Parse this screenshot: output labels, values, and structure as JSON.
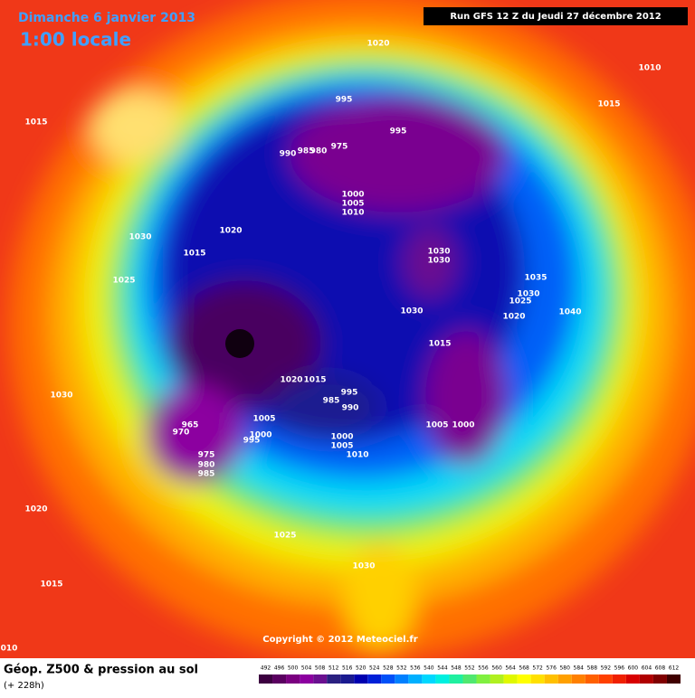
{
  "header": {
    "date": "Dimanche 6 janvier 2013",
    "time": "1:00 locale",
    "run": "Run GFS 12 Z du Jeudi 27 décembre 2012"
  },
  "footer": {
    "title": "Géop. Z500 & pression au sol",
    "lead": "(+ 228h)",
    "copyright": "Copyright © 2012 Meteociel.fr"
  },
  "legend": {
    "ticks": [
      492,
      496,
      500,
      504,
      508,
      512,
      516,
      520,
      524,
      528,
      532,
      536,
      540,
      544,
      548,
      552,
      556,
      560,
      564,
      568,
      572,
      576,
      580,
      584,
      588,
      592,
      596,
      600,
      604,
      608,
      612
    ],
    "colors": [
      "#3c0040",
      "#5a0060",
      "#7a0080",
      "#8c00a0",
      "#6a1090",
      "#2a2080",
      "#1a1a90",
      "#0000b0",
      "#0020d8",
      "#0050f8",
      "#0080ff",
      "#00b0ff",
      "#00d8ff",
      "#00f0e0",
      "#20f0a0",
      "#50e870",
      "#80f040",
      "#b0f020",
      "#e0f800",
      "#ffff00",
      "#ffe000",
      "#ffc000",
      "#ffa000",
      "#ff8000",
      "#ff6000",
      "#ff4000",
      "#f02000",
      "#d80000",
      "#b00000",
      "#800000",
      "#400000"
    ]
  },
  "isobar_labels": [
    "1020",
    "1010",
    "1015",
    "1015",
    "995",
    "995",
    "975",
    "990",
    "985",
    "980",
    "1000",
    "1005",
    "1010",
    "1020",
    "1030",
    "1015",
    "1025",
    "1030",
    "1030",
    "1035",
    "1030",
    "1025",
    "1020",
    "1040",
    "1030",
    "1015",
    "1030",
    "1020",
    "1015",
    "995",
    "985",
    "990",
    "1005",
    "1000",
    "995",
    "1000",
    "1005",
    "1010",
    "1005",
    "1000",
    "965",
    "970",
    "975",
    "980",
    "985",
    "1020",
    "1025",
    "1030",
    "1015",
    "010"
  ]
}
